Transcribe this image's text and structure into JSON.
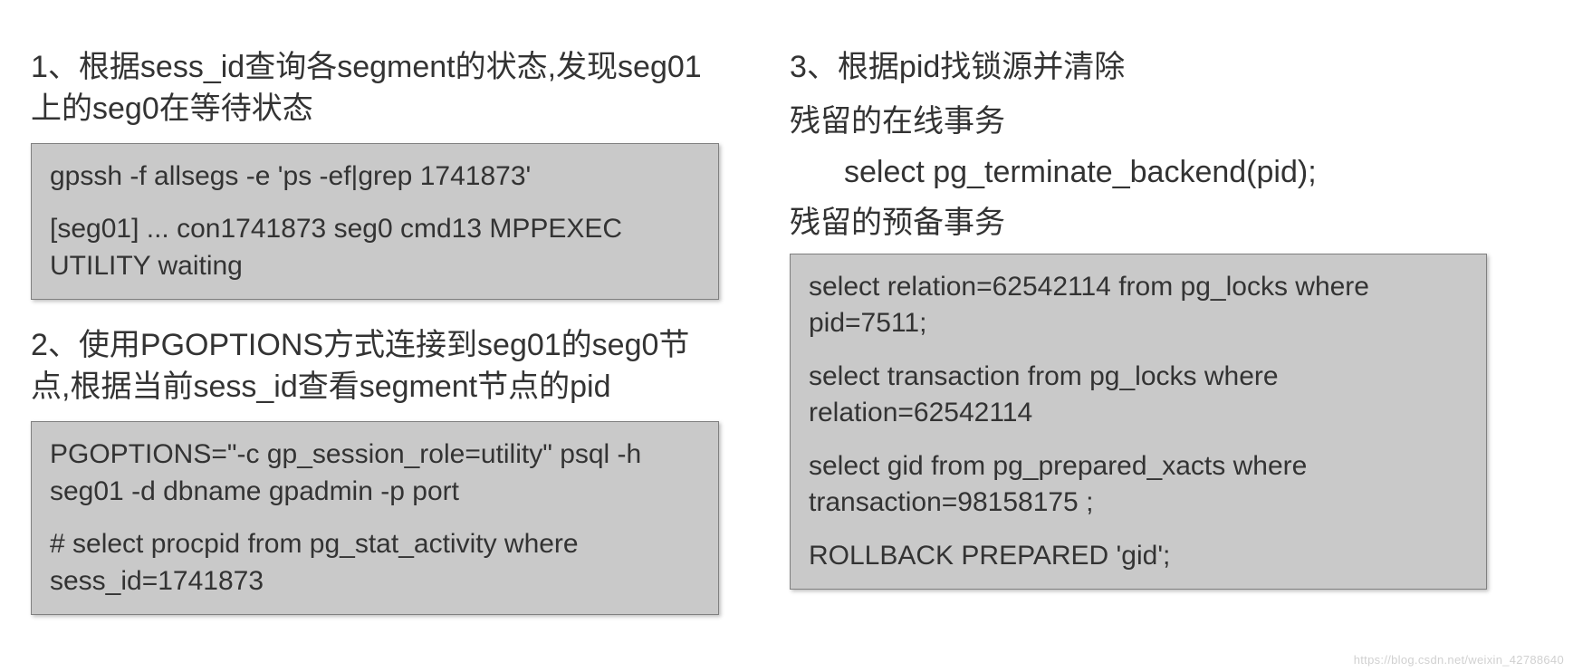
{
  "left": {
    "section1": {
      "heading": "1、根据sess_id查询各segment的状态,发现seg01上的seg0在等待状态",
      "code": {
        "line1": "gpssh -f allsegs -e 'ps -ef|grep 1741873'",
        "line2": "[seg01] ... con1741873 seg0 cmd13 MPPEXEC UTILITY waiting"
      }
    },
    "section2": {
      "heading": "2、使用PGOPTIONS方式连接到seg01的seg0节点,根据当前sess_id查看segment节点的pid",
      "code": {
        "line1": "PGOPTIONS=\"-c gp_session_role=utility\" psql -h seg01 -d dbname gpadmin -p port",
        "line2": "# select procpid from pg_stat_activity where sess_id=1741873"
      }
    }
  },
  "right": {
    "section3": {
      "heading": "3、根据pid找锁源并清除",
      "sub1": "残留的在线事务",
      "indent": "select pg_terminate_backend(pid);",
      "sub2": "残留的预备事务",
      "code": {
        "line1": "select relation=62542114 from pg_locks where pid=7511;",
        "line2": "select transaction  from pg_locks where relation=62542114",
        "line3": "select gid from pg_prepared_xacts where transaction=98158175 ;",
        "line4": "ROLLBACK PREPARED 'gid';"
      }
    }
  },
  "watermark": "https://blog.csdn.net/weixin_42788640"
}
